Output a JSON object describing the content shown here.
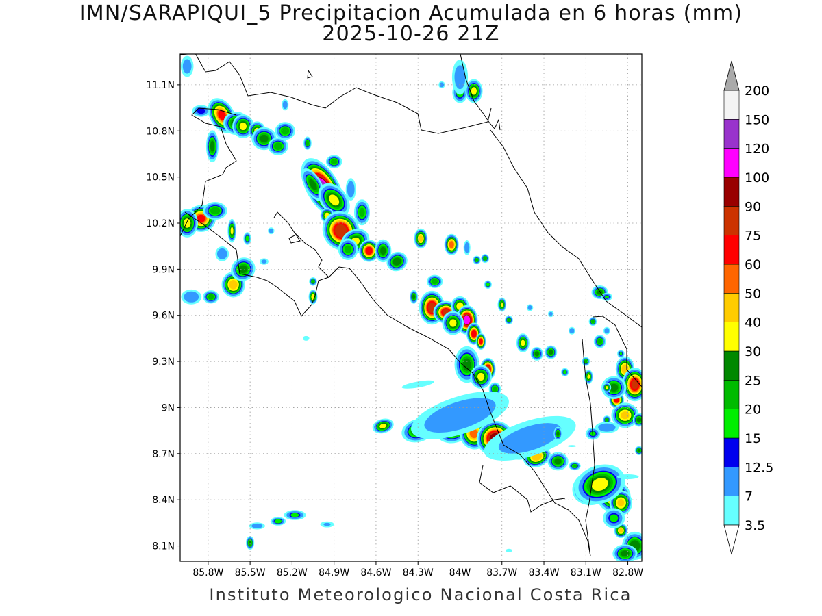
{
  "title": {
    "line1": "IMN/SARAPIQUI_5 Precipitacion Acumulada en 6 horas (mm)",
    "line2": "2025-10-26 21Z"
  },
  "footer": "Instituto Meteorologico Nacional Costa Rica",
  "map": {
    "lon_range": [
      -86.0,
      -82.7
    ],
    "lat_range": [
      8.0,
      11.3
    ],
    "lat_ticks": [
      {
        "value": 8.1,
        "label": "8.1N"
      },
      {
        "value": 8.4,
        "label": "8.4N"
      },
      {
        "value": 8.7,
        "label": "8.7N"
      },
      {
        "value": 9.0,
        "label": "9N"
      },
      {
        "value": 9.3,
        "label": "9.3N"
      },
      {
        "value": 9.6,
        "label": "9.6N"
      },
      {
        "value": 9.9,
        "label": "9.9N"
      },
      {
        "value": 10.2,
        "label": "10.2N"
      },
      {
        "value": 10.5,
        "label": "10.5N"
      },
      {
        "value": 10.8,
        "label": "10.8N"
      },
      {
        "value": 11.1,
        "label": "11.1N"
      }
    ],
    "lon_ticks": [
      {
        "value": -85.8,
        "label": "85.8W"
      },
      {
        "value": -85.5,
        "label": "85.5W"
      },
      {
        "value": -85.2,
        "label": "85.2W"
      },
      {
        "value": -84.9,
        "label": "84.9W"
      },
      {
        "value": -84.6,
        "label": "84.6W"
      },
      {
        "value": -84.3,
        "label": "84.3W"
      },
      {
        "value": -84.0,
        "label": "84W"
      },
      {
        "value": -83.7,
        "label": "83.7W"
      },
      {
        "value": -83.4,
        "label": "83.4W"
      },
      {
        "value": -83.1,
        "label": "83.1W"
      },
      {
        "value": -82.8,
        "label": "82.8W"
      }
    ],
    "grid": true,
    "grid_style": "dotted"
  },
  "colorbar": {
    "unit": "mm",
    "levels": [
      "3.5",
      "7",
      "12.5",
      "15",
      "20",
      "25",
      "30",
      "40",
      "50",
      "60",
      "75",
      "90",
      "100",
      "120",
      "150",
      "200"
    ],
    "colors": [
      "#66ffff",
      "#3399ff",
      "#0000ee",
      "#00ee00",
      "#00bb00",
      "#008800",
      "#ffff00",
      "#ffcc00",
      "#ff6600",
      "#ff0000",
      "#cc3300",
      "#990000",
      "#ff00ff",
      "#9933cc",
      "#f4f4f4",
      "#aaaaaa"
    ]
  },
  "field": {
    "levels_mm": [
      3.5,
      7,
      12.5,
      15,
      20,
      25,
      30,
      40,
      50,
      60,
      75,
      90,
      100,
      120,
      150
    ],
    "cells": [
      {
        "lon": -85.95,
        "lat": 11.22,
        "peak": 10,
        "rx": 0.04,
        "ry": 0.06,
        "rot": 0
      },
      {
        "lon": -85.85,
        "lat": 10.93,
        "peak": 14,
        "rx": 0.05,
        "ry": 0.03,
        "rot": 0
      },
      {
        "lon": -85.7,
        "lat": 10.9,
        "peak": 60,
        "rx": 0.05,
        "ry": 0.07,
        "rot": -30
      },
      {
        "lon": -85.6,
        "lat": 10.85,
        "peak": 28,
        "rx": 0.06,
        "ry": 0.05,
        "rot": 0
      },
      {
        "lon": -85.55,
        "lat": 10.83,
        "peak": 30,
        "rx": 0.05,
        "ry": 0.05,
        "rot": 0
      },
      {
        "lon": -85.45,
        "lat": 10.8,
        "peak": 30,
        "rx": 0.04,
        "ry": 0.04,
        "rot": 0
      },
      {
        "lon": -85.4,
        "lat": 10.75,
        "peak": 25,
        "rx": 0.06,
        "ry": 0.05,
        "rot": 0
      },
      {
        "lon": -85.3,
        "lat": 10.7,
        "peak": 22,
        "rx": 0.05,
        "ry": 0.04,
        "rot": 0
      },
      {
        "lon": -85.25,
        "lat": 10.8,
        "peak": 22,
        "rx": 0.05,
        "ry": 0.04,
        "rot": 0
      },
      {
        "lon": -85.77,
        "lat": 10.7,
        "peak": 25,
        "rx": 0.03,
        "ry": 0.07,
        "rot": 0
      },
      {
        "lon": -85.09,
        "lat": 10.72,
        "peak": 22,
        "rx": 0.02,
        "ry": 0.03,
        "rot": 0
      },
      {
        "lon": -85.25,
        "lat": 10.97,
        "peak": 12,
        "rx": 0.02,
        "ry": 0.03,
        "rot": 0
      },
      {
        "lon": -84.9,
        "lat": 10.6,
        "peak": 22,
        "rx": 0.04,
        "ry": 0.03,
        "rot": 0
      },
      {
        "lon": -84.98,
        "lat": 10.43,
        "peak": 120,
        "rx": 0.06,
        "ry": 0.11,
        "rot": -30
      },
      {
        "lon": -85.05,
        "lat": 10.45,
        "peak": 25,
        "rx": 0.04,
        "ry": 0.08,
        "rot": -30
      },
      {
        "lon": -84.9,
        "lat": 10.35,
        "peak": 30,
        "rx": 0.06,
        "ry": 0.08,
        "rot": -40
      },
      {
        "lon": -84.95,
        "lat": 10.25,
        "peak": 35,
        "rx": 0.03,
        "ry": 0.03,
        "rot": 0
      },
      {
        "lon": -84.85,
        "lat": 10.15,
        "peak": 85,
        "rx": 0.07,
        "ry": 0.07,
        "rot": -30
      },
      {
        "lon": -84.75,
        "lat": 10.08,
        "peak": 30,
        "rx": 0.07,
        "ry": 0.05,
        "rot": -30
      },
      {
        "lon": -84.65,
        "lat": 10.02,
        "peak": 70,
        "rx": 0.04,
        "ry": 0.04,
        "rot": 0
      },
      {
        "lon": -84.55,
        "lat": 10.02,
        "peak": 25,
        "rx": 0.04,
        "ry": 0.05,
        "rot": 0
      },
      {
        "lon": -84.45,
        "lat": 9.95,
        "peak": 28,
        "rx": 0.05,
        "ry": 0.04,
        "rot": -30
      },
      {
        "lon": -84.8,
        "lat": 10.03,
        "peak": 20,
        "rx": 0.05,
        "ry": 0.05,
        "rot": 0
      },
      {
        "lon": -84.7,
        "lat": 10.27,
        "peak": 20,
        "rx": 0.04,
        "ry": 0.06,
        "rot": 0
      },
      {
        "lon": -84.78,
        "lat": 10.42,
        "peak": 12,
        "rx": 0.03,
        "ry": 0.06,
        "rot": 0
      },
      {
        "lon": -84.28,
        "lat": 10.1,
        "peak": 40,
        "rx": 0.03,
        "ry": 0.04,
        "rot": 0
      },
      {
        "lon": -84.06,
        "lat": 10.06,
        "peak": 55,
        "rx": 0.03,
        "ry": 0.04,
        "rot": 0
      },
      {
        "lon": -83.95,
        "lat": 10.04,
        "peak": 12,
        "rx": 0.02,
        "ry": 0.04,
        "rot": 0
      },
      {
        "lon": -83.82,
        "lat": 9.97,
        "peak": 22,
        "rx": 0.02,
        "ry": 0.02,
        "rot": 0
      },
      {
        "lon": -83.88,
        "lat": 9.96,
        "peak": 20,
        "rx": 0.02,
        "ry": 0.02,
        "rot": 0
      },
      {
        "lon": -84.0,
        "lat": 11.05,
        "peak": 18,
        "rx": 0.04,
        "ry": 0.05,
        "rot": 0
      },
      {
        "lon": -83.9,
        "lat": 11.06,
        "peak": 30,
        "rx": 0.04,
        "ry": 0.05,
        "rot": 0
      },
      {
        "lon": -84.0,
        "lat": 11.15,
        "peak": 10,
        "rx": 0.05,
        "ry": 0.1,
        "rot": 0
      },
      {
        "lon": -84.13,
        "lat": 11.1,
        "peak": 10,
        "rx": 0.02,
        "ry": 0.02,
        "rot": 0
      },
      {
        "lon": -85.85,
        "lat": 10.23,
        "peak": 60,
        "rx": 0.06,
        "ry": 0.05,
        "rot": 0
      },
      {
        "lon": -85.95,
        "lat": 10.2,
        "peak": 30,
        "rx": 0.05,
        "ry": 0.06,
        "rot": 0
      },
      {
        "lon": -85.75,
        "lat": 10.28,
        "peak": 22,
        "rx": 0.06,
        "ry": 0.04,
        "rot": 0
      },
      {
        "lon": -85.7,
        "lat": 10.0,
        "peak": 12,
        "rx": 0.04,
        "ry": 0.04,
        "rot": 0
      },
      {
        "lon": -85.63,
        "lat": 10.15,
        "peak": 30,
        "rx": 0.02,
        "ry": 0.05,
        "rot": 0
      },
      {
        "lon": -85.52,
        "lat": 10.1,
        "peak": 18,
        "rx": 0.02,
        "ry": 0.03,
        "rot": 0
      },
      {
        "lon": -85.35,
        "lat": 10.15,
        "peak": 10,
        "rx": 0.02,
        "ry": 0.02,
        "rot": 0
      },
      {
        "lon": -85.62,
        "lat": 9.8,
        "peak": 45,
        "rx": 0.05,
        "ry": 0.05,
        "rot": 0
      },
      {
        "lon": -85.55,
        "lat": 9.9,
        "peak": 25,
        "rx": 0.06,
        "ry": 0.05,
        "rot": -35
      },
      {
        "lon": -85.78,
        "lat": 9.72,
        "peak": 22,
        "rx": 0.04,
        "ry": 0.03,
        "rot": 0
      },
      {
        "lon": -85.92,
        "lat": 9.72,
        "peak": 12,
        "rx": 0.06,
        "ry": 0.04,
        "rot": 0
      },
      {
        "lon": -85.05,
        "lat": 9.72,
        "peak": 35,
        "rx": 0.02,
        "ry": 0.03,
        "rot": 0
      },
      {
        "lon": -85.05,
        "lat": 9.82,
        "peak": 20,
        "rx": 0.02,
        "ry": 0.02,
        "rot": 0
      },
      {
        "lon": -85.4,
        "lat": 9.95,
        "peak": 8,
        "rx": 0.03,
        "ry": 0.02,
        "rot": 0
      },
      {
        "lon": -85.1,
        "lat": 9.45,
        "peak": 5,
        "rx": 0.03,
        "ry": 0.02,
        "rot": 0
      },
      {
        "lon": -84.2,
        "lat": 9.65,
        "peak": 80,
        "rx": 0.05,
        "ry": 0.06,
        "rot": 0
      },
      {
        "lon": -84.1,
        "lat": 9.62,
        "peak": 75,
        "rx": 0.05,
        "ry": 0.04,
        "rot": 0
      },
      {
        "lon": -84.18,
        "lat": 9.82,
        "peak": 22,
        "rx": 0.04,
        "ry": 0.03,
        "rot": 0
      },
      {
        "lon": -84.33,
        "lat": 9.72,
        "peak": 25,
        "rx": 0.02,
        "ry": 0.03,
        "rot": 0
      },
      {
        "lon": -84.0,
        "lat": 9.66,
        "peak": 35,
        "rx": 0.04,
        "ry": 0.04,
        "rot": 0
      },
      {
        "lon": -83.95,
        "lat": 9.57,
        "peak": 110,
        "rx": 0.04,
        "ry": 0.05,
        "rot": 0
      },
      {
        "lon": -83.9,
        "lat": 9.48,
        "peak": 70,
        "rx": 0.03,
        "ry": 0.04,
        "rot": 0
      },
      {
        "lon": -83.85,
        "lat": 9.43,
        "peak": 70,
        "rx": 0.02,
        "ry": 0.03,
        "rot": 0
      },
      {
        "lon": -84.05,
        "lat": 9.55,
        "peak": 30,
        "rx": 0.05,
        "ry": 0.05,
        "rot": 0
      },
      {
        "lon": -83.95,
        "lat": 9.28,
        "peak": 25,
        "rx": 0.06,
        "ry": 0.08,
        "rot": 0
      },
      {
        "lon": -83.8,
        "lat": 9.25,
        "peak": 80,
        "rx": 0.03,
        "ry": 0.04,
        "rot": 0
      },
      {
        "lon": -83.85,
        "lat": 9.2,
        "peak": 30,
        "rx": 0.05,
        "ry": 0.05,
        "rot": 0
      },
      {
        "lon": -83.75,
        "lat": 9.12,
        "peak": 22,
        "rx": 0.03,
        "ry": 0.03,
        "rot": 0
      },
      {
        "lon": -83.7,
        "lat": 9.67,
        "peak": 30,
        "rx": 0.02,
        "ry": 0.03,
        "rot": 0
      },
      {
        "lon": -83.65,
        "lat": 9.57,
        "peak": 22,
        "rx": 0.02,
        "ry": 0.02,
        "rot": 0
      },
      {
        "lon": -83.8,
        "lat": 9.8,
        "peak": 18,
        "rx": 0.02,
        "ry": 0.02,
        "rot": 0
      },
      {
        "lon": -83.55,
        "lat": 9.42,
        "peak": 30,
        "rx": 0.03,
        "ry": 0.04,
        "rot": 0
      },
      {
        "lon": -83.45,
        "lat": 9.35,
        "peak": 25,
        "rx": 0.03,
        "ry": 0.03,
        "rot": 0
      },
      {
        "lon": -83.35,
        "lat": 9.36,
        "peak": 25,
        "rx": 0.03,
        "ry": 0.03,
        "rot": 0
      },
      {
        "lon": -83.5,
        "lat": 9.65,
        "peak": 10,
        "rx": 0.02,
        "ry": 0.02,
        "rot": 0
      },
      {
        "lon": -83.35,
        "lat": 9.61,
        "peak": 8,
        "rx": 0.02,
        "ry": 0.02,
        "rot": 0
      },
      {
        "lon": -83.2,
        "lat": 9.5,
        "peak": 12,
        "rx": 0.02,
        "ry": 0.02,
        "rot": 0
      },
      {
        "lon": -83.05,
        "lat": 9.56,
        "peak": 22,
        "rx": 0.02,
        "ry": 0.02,
        "rot": 0
      },
      {
        "lon": -82.95,
        "lat": 9.5,
        "peak": 12,
        "rx": 0.02,
        "ry": 0.02,
        "rot": 0
      },
      {
        "lon": -83.0,
        "lat": 9.43,
        "peak": 22,
        "rx": 0.03,
        "ry": 0.03,
        "rot": 0
      },
      {
        "lon": -83.1,
        "lat": 9.3,
        "peak": 22,
        "rx": 0.02,
        "ry": 0.02,
        "rot": 0
      },
      {
        "lon": -83.08,
        "lat": 9.2,
        "peak": 30,
        "rx": 0.02,
        "ry": 0.03,
        "rot": 0
      },
      {
        "lon": -83.25,
        "lat": 9.23,
        "peak": 18,
        "rx": 0.02,
        "ry": 0.02,
        "rot": 0
      },
      {
        "lon": -83.0,
        "lat": 9.75,
        "peak": 25,
        "rx": 0.04,
        "ry": 0.03,
        "rot": 0
      },
      {
        "lon": -82.95,
        "lat": 9.72,
        "peak": 15,
        "rx": 0.03,
        "ry": 0.02,
        "rot": 0
      },
      {
        "lon": -82.85,
        "lat": 9.35,
        "peak": 15,
        "rx": 0.02,
        "ry": 0.02,
        "rot": 0
      },
      {
        "lon": -82.82,
        "lat": 9.25,
        "peak": 45,
        "rx": 0.04,
        "ry": 0.05,
        "rot": 0
      },
      {
        "lon": -82.75,
        "lat": 9.15,
        "peak": 75,
        "rx": 0.05,
        "ry": 0.06,
        "rot": 0
      },
      {
        "lon": -82.88,
        "lat": 9.05,
        "peak": 70,
        "rx": 0.03,
        "ry": 0.03,
        "rot": 0
      },
      {
        "lon": -82.82,
        "lat": 8.95,
        "peak": 40,
        "rx": 0.06,
        "ry": 0.05,
        "rot": 0
      },
      {
        "lon": -82.9,
        "lat": 9.13,
        "peak": 25,
        "rx": 0.06,
        "ry": 0.05,
        "rot": 0
      },
      {
        "lon": -82.95,
        "lat": 9.13,
        "peak": 30,
        "rx": 0.02,
        "ry": 0.02,
        "rot": 0
      },
      {
        "lon": -82.95,
        "lat": 8.92,
        "peak": 20,
        "rx": 0.02,
        "ry": 0.02,
        "rot": 0
      },
      {
        "lon": -82.72,
        "lat": 8.92,
        "peak": 25,
        "rx": 0.03,
        "ry": 0.03,
        "rot": 0
      },
      {
        "lon": -82.72,
        "lat": 8.72,
        "peak": 25,
        "rx": 0.02,
        "ry": 0.02,
        "rot": 0
      },
      {
        "lon": -82.95,
        "lat": 8.87,
        "peak": 12,
        "rx": 0.07,
        "ry": 0.03,
        "rot": 0
      },
      {
        "lon": -84.55,
        "lat": 8.88,
        "peak": 30,
        "rx": 0.05,
        "ry": 0.03,
        "rot": -15
      },
      {
        "lon": -84.3,
        "lat": 8.85,
        "peak": 25,
        "rx": 0.08,
        "ry": 0.05,
        "rot": -15
      },
      {
        "lon": -84.2,
        "lat": 8.88,
        "peak": 40,
        "rx": 0.05,
        "ry": 0.04,
        "rot": 0
      },
      {
        "lon": -84.05,
        "lat": 8.87,
        "peak": 45,
        "rx": 0.08,
        "ry": 0.06,
        "rot": -15
      },
      {
        "lon": -83.9,
        "lat": 8.83,
        "peak": 50,
        "rx": 0.06,
        "ry": 0.06,
        "rot": -15
      },
      {
        "lon": -83.75,
        "lat": 8.8,
        "peak": 95,
        "rx": 0.07,
        "ry": 0.06,
        "rot": -20
      },
      {
        "lon": -83.7,
        "lat": 8.77,
        "peak": 120,
        "rx": 0.02,
        "ry": 0.015,
        "rot": 0
      },
      {
        "lon": -83.55,
        "lat": 8.75,
        "peak": 45,
        "rx": 0.08,
        "ry": 0.05,
        "rot": -20
      },
      {
        "lon": -83.45,
        "lat": 8.68,
        "peak": 45,
        "rx": 0.06,
        "ry": 0.04,
        "rot": -20
      },
      {
        "lon": -83.3,
        "lat": 8.65,
        "peak": 25,
        "rx": 0.05,
        "ry": 0.04,
        "rot": 0
      },
      {
        "lon": -84.0,
        "lat": 8.95,
        "peak": 12,
        "rx": 0.3,
        "ry": 0.1,
        "rot": -18
      },
      {
        "lon": -83.5,
        "lat": 8.8,
        "peak": 10,
        "rx": 0.3,
        "ry": 0.1,
        "rot": -18
      },
      {
        "lon": -84.3,
        "lat": 9.15,
        "peak": 5,
        "rx": 0.15,
        "ry": 0.025,
        "rot": -10
      },
      {
        "lon": -83.18,
        "lat": 8.62,
        "peak": 20,
        "rx": 0.03,
        "ry": 0.02,
        "rot": 0
      },
      {
        "lon": -83.3,
        "lat": 8.83,
        "peak": 25,
        "rx": 0.02,
        "ry": 0.03,
        "rot": 0
      },
      {
        "lon": -83.05,
        "lat": 8.83,
        "peak": 15,
        "rx": 0.04,
        "ry": 0.03,
        "rot": 0
      },
      {
        "lon": -83.05,
        "lat": 8.48,
        "peak": 90,
        "rx": 0.08,
        "ry": 0.06,
        "rot": -20
      },
      {
        "lon": -82.9,
        "lat": 8.42,
        "peak": 50,
        "rx": 0.07,
        "ry": 0.06,
        "rot": 0
      },
      {
        "lon": -82.85,
        "lat": 8.38,
        "peak": 40,
        "rx": 0.05,
        "ry": 0.05,
        "rot": 0
      },
      {
        "lon": -83.0,
        "lat": 8.5,
        "peak": 30,
        "rx": 0.12,
        "ry": 0.08,
        "rot": -20
      },
      {
        "lon": -82.85,
        "lat": 8.2,
        "peak": 40,
        "rx": 0.03,
        "ry": 0.03,
        "rot": 0
      },
      {
        "lon": -82.75,
        "lat": 8.1,
        "peak": 28,
        "rx": 0.06,
        "ry": 0.06,
        "rot": 0
      },
      {
        "lon": -82.82,
        "lat": 8.05,
        "peak": 25,
        "rx": 0.06,
        "ry": 0.04,
        "rot": 0
      },
      {
        "lon": -82.9,
        "lat": 8.28,
        "peak": 15,
        "rx": 0.06,
        "ry": 0.05,
        "rot": 0
      },
      {
        "lon": -82.8,
        "lat": 8.55,
        "peak": 5,
        "rx": 0.1,
        "ry": 0.02,
        "rot": 0
      },
      {
        "lon": -85.5,
        "lat": 8.12,
        "peak": 25,
        "rx": 0.02,
        "ry": 0.03,
        "rot": 0
      },
      {
        "lon": -85.45,
        "lat": 8.23,
        "peak": 10,
        "rx": 0.05,
        "ry": 0.02,
        "rot": 0
      },
      {
        "lon": -85.3,
        "lat": 8.26,
        "peak": 18,
        "rx": 0.04,
        "ry": 0.02,
        "rot": 0
      },
      {
        "lon": -85.18,
        "lat": 8.3,
        "peak": 15,
        "rx": 0.06,
        "ry": 0.025,
        "rot": 0
      },
      {
        "lon": -84.95,
        "lat": 8.24,
        "peak": 7,
        "rx": 0.05,
        "ry": 0.02,
        "rot": 0
      },
      {
        "lon": -83.65,
        "lat": 8.07,
        "peak": 5,
        "rx": 0.03,
        "ry": 0.015,
        "rot": 0
      },
      {
        "lon": -83.2,
        "lat": 8.75,
        "peak": 4,
        "rx": 0.05,
        "ry": 0.01,
        "rot": 0
      }
    ]
  }
}
